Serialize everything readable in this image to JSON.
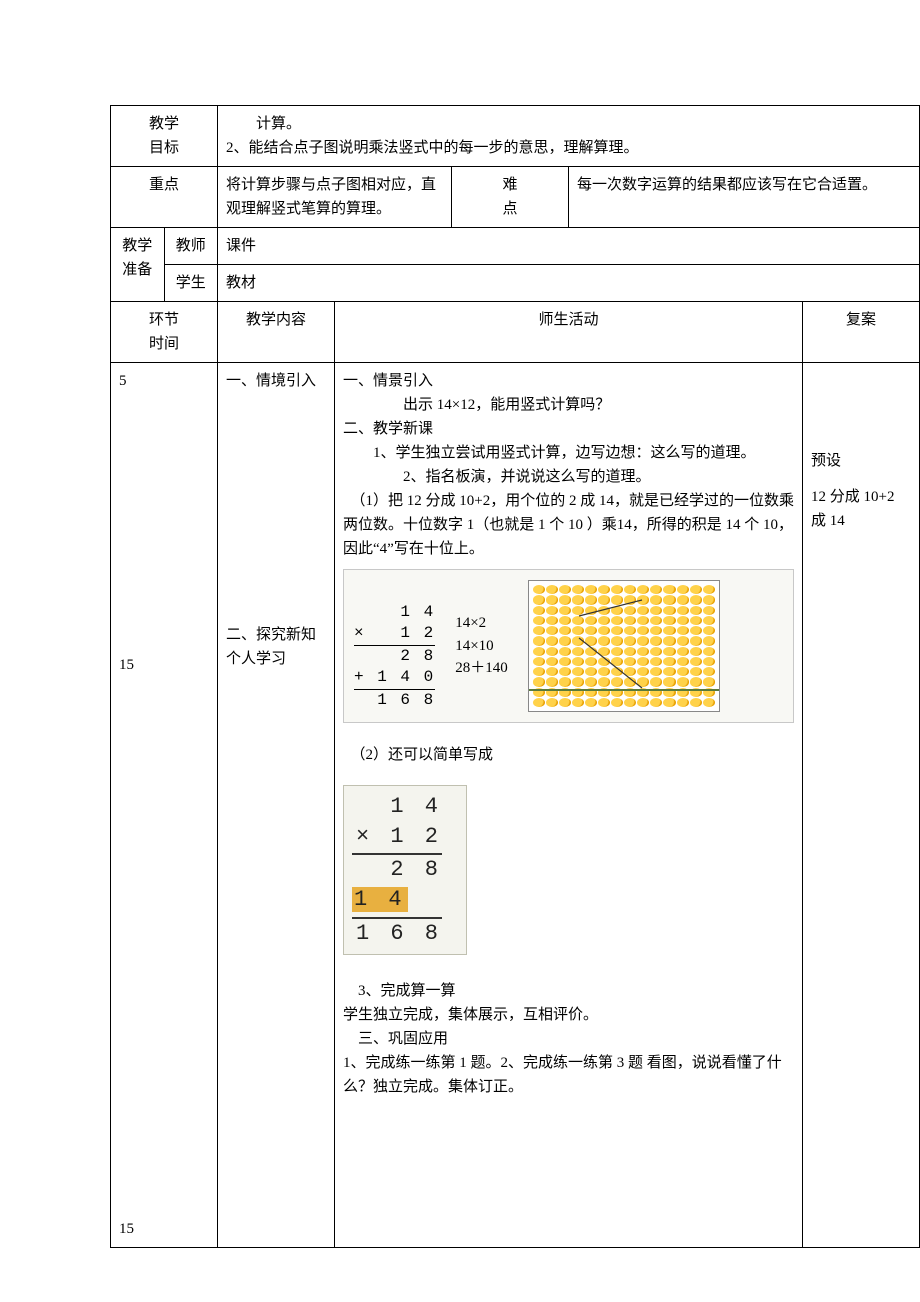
{
  "row_goal": {
    "label": "教学\n目标",
    "text_line1": "　　计算。",
    "text_line2": "2、能结合点子图说明乘法竖式中的每一步的意思，理解算理。"
  },
  "row_keys": {
    "key_label": "重点",
    "key_text": "将计算步骤与点子图相对应，直观理解竖式笔算的算理。",
    "diff_label": "难\n点",
    "diff_text": "每一次数字运算的结果都应该写在它合适置。"
  },
  "row_prep": {
    "label": "教学\n准备",
    "teacher_label": "教师",
    "teacher_val": "课件",
    "student_label": "学生",
    "student_val": "教材"
  },
  "header": {
    "time": "环节\n时间",
    "content": "教学内容",
    "activity": "师生活动",
    "fuan": "复案"
  },
  "times": {
    "t1": "5",
    "t2": "15",
    "t3": "15"
  },
  "sections": {
    "s1": "一、情境引入",
    "s2": "二、探究新知\n个人学习"
  },
  "activity": {
    "a1": "一、情景引入",
    "a2": "　　　　出示 14×12，能用竖式计算吗？",
    "a3": "二、教学新课",
    "a4": "　　1、学生独立尝试用竖式计算，边写边想：这么写的道理。",
    "a5": "　　　　2、指名板演，并说说这么写的道理。",
    "a6": "　（1）把 12 分成 10+2，用个位的 2 成 14，就是已经学过的一位数乘两位数。十位数字 1（也就是 1 个 10 ）乘14，所得的积是 14 个 10，因此“4”写在十位上。",
    "a7": "　（2）还可以简单写成",
    "a8": "　3、完成算一算",
    "a9": "学生独立完成，集体展示，互相评价。",
    "a10": "　三、巩固应用",
    "a11": "1、完成练一练第 1 题。2、完成练一练第 3 题 看图，说说看懂了什么？独立完成。集体订正。"
  },
  "fuan": {
    "f1": "预设",
    "f2": "12 分成 10+2 成 14"
  },
  "calc1": {
    "r1": "    1 4",
    "r2": "×   1 2",
    "r3": "    2 8",
    "r4": "+ 1 4 0",
    "r5": "  1 6 8",
    "ann1": "14×2",
    "ann2": "14×10",
    "ann3": "28＋140"
  },
  "calc2": {
    "r1": "  1 4",
    "r2": "× 1 2",
    "r3": "  2 8",
    "r4_a": "1 4",
    "r5": "1 6 8"
  },
  "dot_array": {
    "rows": 12,
    "cols": 14,
    "split_after_row": 10,
    "dot_color": "#f4b400",
    "sep_color": "#5a7a3a"
  },
  "colors": {
    "border": "#000000",
    "img_bg": "#f8f8f4",
    "highlight": "#e8b040"
  }
}
